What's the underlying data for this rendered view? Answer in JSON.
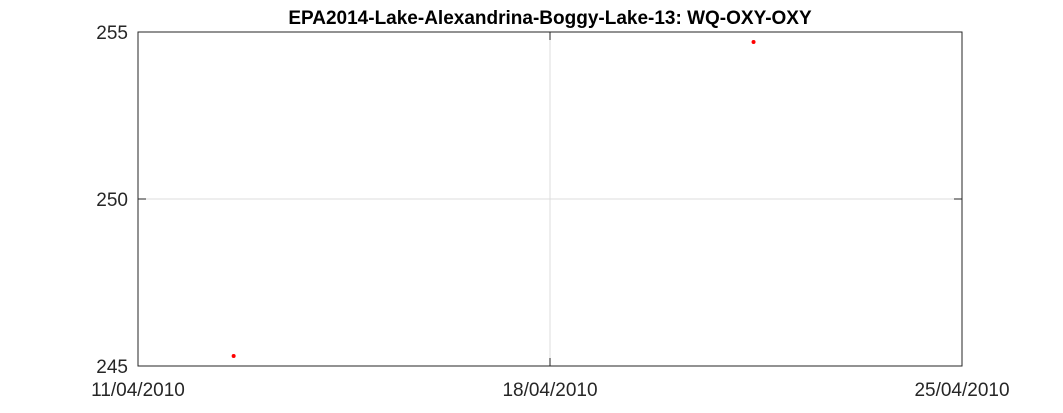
{
  "chart_data": {
    "type": "scatter",
    "title": "EPA2014-Lake-Alexandrina-Boggy-Lake-13: WQ-OXY-OXY",
    "xlabel": "",
    "ylabel": "",
    "xlim": [
      "2010-04-11",
      "2010-04-25"
    ],
    "ylim": [
      245,
      255
    ],
    "xticks": [
      {
        "value": "2010-04-11",
        "label": "11/04/2010"
      },
      {
        "value": "2010-04-18",
        "label": "18/04/2010"
      },
      {
        "value": "2010-04-25",
        "label": "25/04/2010"
      }
    ],
    "yticks": [
      {
        "value": 245,
        "label": "245"
      },
      {
        "value": 250,
        "label": "250"
      },
      {
        "value": 255,
        "label": "255"
      }
    ],
    "grid": true,
    "series": [
      {
        "color": "#ff0000",
        "points": [
          {
            "x": "2010-04-12 15:00",
            "y": 245.3
          },
          {
            "x": "2010-04-21 11:00",
            "y": 254.7
          }
        ]
      }
    ]
  }
}
